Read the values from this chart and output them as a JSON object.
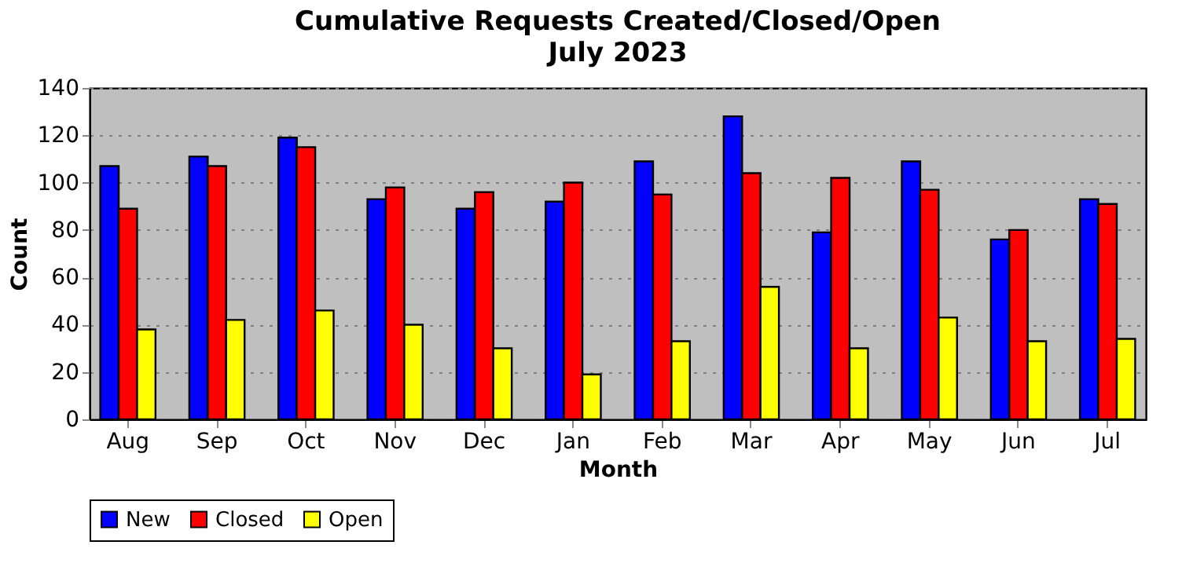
{
  "chart_data": {
    "type": "bar",
    "title": "Cumulative Requests Created/Closed/Open",
    "subtitle": "July 2023",
    "xlabel": "Month",
    "ylabel": "Count",
    "categories": [
      "Aug",
      "Sep",
      "Oct",
      "Nov",
      "Dec",
      "Jan",
      "Feb",
      "Mar",
      "Apr",
      "May",
      "Jun",
      "Jul"
    ],
    "series": [
      {
        "name": "New",
        "color": "#0000ff",
        "values": [
          107,
          111,
          119,
          93,
          89,
          92,
          109,
          128,
          79,
          109,
          76,
          93
        ]
      },
      {
        "name": "Closed",
        "color": "#ff0000",
        "values": [
          89,
          107,
          115,
          98,
          96,
          100,
          95,
          104,
          102,
          97,
          80,
          91
        ]
      },
      {
        "name": "Open",
        "color": "#ffff00",
        "values": [
          38,
          42,
          46,
          40,
          30,
          19,
          33,
          56,
          30,
          43,
          33,
          34
        ]
      }
    ],
    "ylim": [
      0,
      140
    ],
    "yticks": [
      0,
      20,
      40,
      60,
      80,
      100,
      120,
      140
    ],
    "grid": "y",
    "legend": "bottom"
  }
}
